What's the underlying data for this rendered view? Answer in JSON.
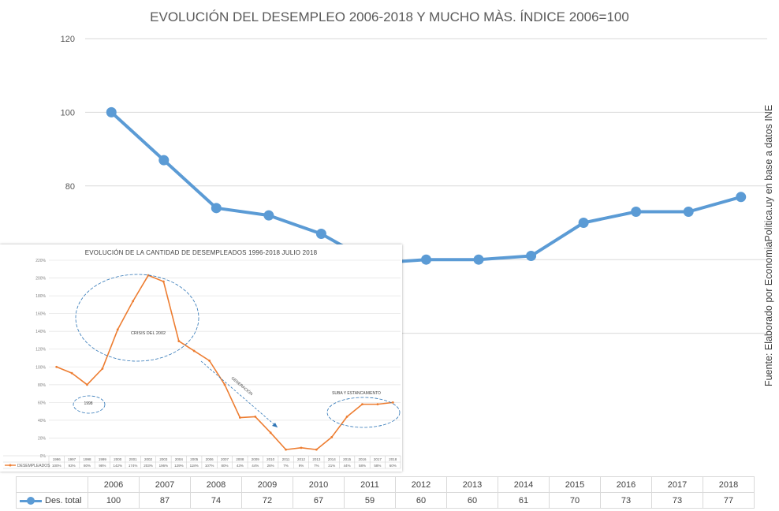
{
  "title": "EVOLUCIÓN DEL DESEMPLEO 2006-2018 Y MUCHO MÀS. ÍNDICE 2006=100",
  "source_note": "Fuente: Elaborado por EconomiaPolitica.uy en base a datos INE",
  "colors": {
    "main_series": "#5b9bd5",
    "inset_series": "#ed7d31",
    "grid": "#d9d9d9"
  },
  "chart_data": [
    {
      "type": "line",
      "title": "EVOLUCIÓN DEL DESEMPLEO 2006-2018 Y MUCHO MÀS. ÍNDICE 2006=100",
      "xlabel": "",
      "ylabel": "",
      "categories": [
        "2006",
        "2007",
        "2008",
        "2009",
        "2010",
        "2011",
        "2012",
        "2013",
        "2014",
        "2015",
        "2016",
        "2017",
        "2018"
      ],
      "series": [
        {
          "name": "Des. total",
          "values": [
            100,
            87,
            74,
            72,
            67,
            59,
            60,
            60,
            61,
            70,
            73,
            73,
            77
          ]
        }
      ],
      "yticks": [
        "120",
        "100",
        "80"
      ],
      "ylim": [
        0,
        120
      ],
      "grid": true,
      "data_table": true
    },
    {
      "type": "line",
      "title": "EVOLUCIÓN DE LA CANTIDAD DE DESEMPLEADOS 1996-2018 JULIO 2018",
      "categories": [
        "1996",
        "1997",
        "1998",
        "1999",
        "2000",
        "2001",
        "2002",
        "2003",
        "2004",
        "2005",
        "2006",
        "2007",
        "2008",
        "2009",
        "2010",
        "2011",
        "2012",
        "2013",
        "2014",
        "2015",
        "2016",
        "2017",
        "2018"
      ],
      "series": [
        {
          "name": "DESEMPLEADOS",
          "values": [
            100,
            93,
            80,
            98,
            142,
            174,
            203,
            196,
            129,
            118,
            107,
            80,
            43,
            44,
            26,
            7,
            9,
            7,
            21,
            44,
            58,
            58,
            60
          ]
        }
      ],
      "ylim": [
        0,
        220
      ],
      "grid": true,
      "annotations": [
        "CRISIS DEL 2002",
        "1998",
        "GENERACIÓN",
        "SUBA Y ESTANCAMIENTO"
      ]
    }
  ],
  "inset": {
    "title": "EVOLUCIÓN DE LA CANTIDAD DE DESEMPLEADOS 1996-2018 JULIO 2018",
    "legend_label": "DESEMPLEADOS",
    "ytick_labels": [
      "220%",
      "200%",
      "180%",
      "160%",
      "140%",
      "120%",
      "100%",
      "80%",
      "60%",
      "40%",
      "20%",
      "0%"
    ],
    "row_values": [
      "100%",
      "93%",
      "80%",
      "98%",
      "142%",
      "174%",
      "203%",
      "196%",
      "129%",
      "118%",
      "107%",
      "80%",
      "43%",
      "44%",
      "26%",
      "7%",
      "9%",
      "7%",
      "21%",
      "44%",
      "58%",
      "58%",
      "60%"
    ],
    "annotations": [
      "CRISIS DEL 2002",
      "1998",
      "GENERACIÓN",
      "SUBA Y ESTANCAMIENTO"
    ]
  }
}
